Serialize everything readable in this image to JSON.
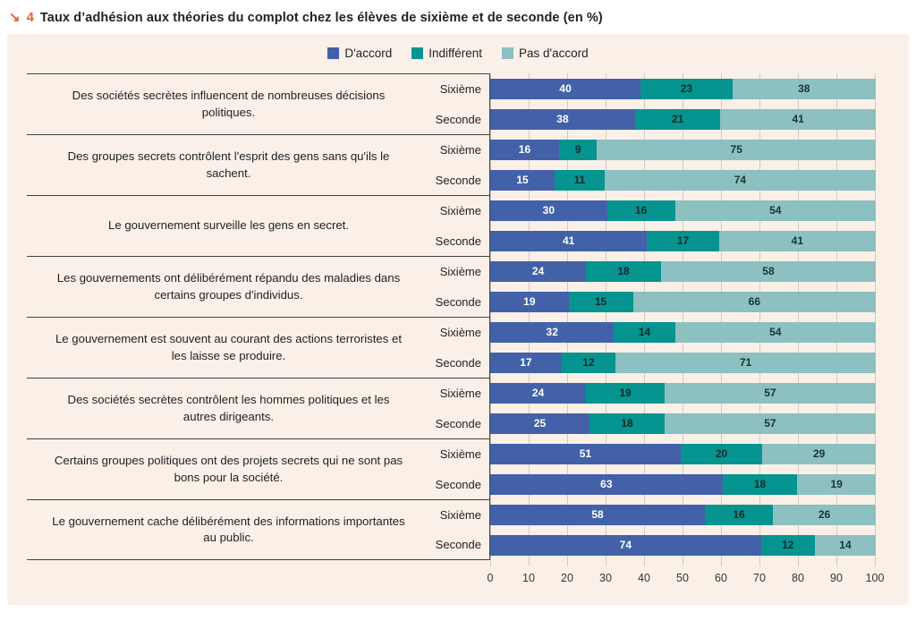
{
  "title": {
    "marker": "↘",
    "number": "4",
    "text": "Taux d’adhésion aux théories du complot chez les élèves de sixième et de seconde (en %)"
  },
  "colors": {
    "title_accent": "#eb6226",
    "card_background": "#fbf0e8",
    "grid_line": "#d2cac2",
    "box_border": "#404040"
  },
  "chart_data": {
    "type": "bar",
    "stacked": true,
    "orientation": "horizontal",
    "title": "Taux d’adhésion aux théories du complot chez les élèves de sixième et de seconde (en %)",
    "xlabel": "",
    "ylabel": "",
    "xlim": [
      0,
      100
    ],
    "x_ticks": [
      0,
      10,
      20,
      30,
      40,
      50,
      60,
      70,
      80,
      90,
      100
    ],
    "grid": true,
    "legend_position": "top-center",
    "series": [
      {
        "name": "D'accord",
        "color": "#4261a9",
        "value_text_color": "#ffffff"
      },
      {
        "name": "Indifférent",
        "color": "#069490",
        "value_text_color": "#132928"
      },
      {
        "name": "Pas d'accord",
        "color": "#8cc0c1",
        "value_text_color": "#1c3434"
      }
    ],
    "groups": [
      {
        "question": "Des sociétés secrètes influencent de nombreuses décisions politiques.",
        "rows": [
          {
            "label": "Sixième",
            "values": [
              40,
              23,
              38
            ]
          },
          {
            "label": "Seconde",
            "values": [
              38,
              21,
              41
            ]
          }
        ]
      },
      {
        "question": "Des groupes secrets contrôlent l'esprit des gens sans qu'ils le sachent.",
        "rows": [
          {
            "label": "Sixième",
            "values": [
              16,
              9,
              75
            ]
          },
          {
            "label": "Seconde",
            "values": [
              15,
              11,
              74
            ]
          }
        ]
      },
      {
        "question": "Le gouvernement surveille les gens en secret.",
        "rows": [
          {
            "label": "Sixième",
            "values": [
              30,
              16,
              54
            ]
          },
          {
            "label": "Seconde",
            "values": [
              41,
              17,
              41
            ]
          }
        ]
      },
      {
        "question": "Les gouvernements ont délibérément répandu des maladies dans certains groupes d'individus.",
        "rows": [
          {
            "label": "Sixième",
            "values": [
              24,
              18,
              58
            ]
          },
          {
            "label": "Seconde",
            "values": [
              19,
              15,
              66
            ]
          }
        ]
      },
      {
        "question": "Le gouvernement est souvent au courant des actions terroristes et les laisse se produire.",
        "rows": [
          {
            "label": "Sixième",
            "values": [
              32,
              14,
              54
            ]
          },
          {
            "label": "Seconde",
            "values": [
              17,
              12,
              71
            ]
          }
        ]
      },
      {
        "question": "Des sociétés secrètes contrôlent les hommes politiques et les autres dirigeants.",
        "rows": [
          {
            "label": "Sixième",
            "values": [
              24,
              19,
              57
            ]
          },
          {
            "label": "Seconde",
            "values": [
              25,
              18,
              57
            ]
          }
        ]
      },
      {
        "question": "Certains groupes politiques ont des projets secrets qui ne sont pas bons pour la société.",
        "rows": [
          {
            "label": "Sixième",
            "values": [
              51,
              20,
              29
            ]
          },
          {
            "label": "Seconde",
            "values": [
              63,
              18,
              19
            ]
          }
        ]
      },
      {
        "question": "Le gouvernement cache délibérément des informations importantes au public.",
        "rows": [
          {
            "label": "Sixième",
            "values": [
              58,
              16,
              26
            ]
          },
          {
            "label": "Seconde",
            "values": [
              74,
              12,
              14
            ]
          }
        ]
      }
    ]
  }
}
